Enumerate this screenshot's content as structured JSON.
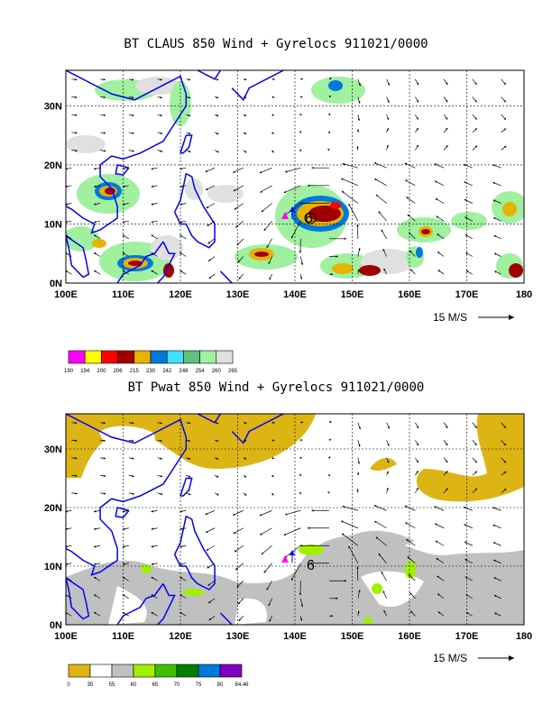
{
  "top_panel": {
    "title": "BT CLAUS 850 Wind + Gyrelocs 911021/0000",
    "storm_label": "6",
    "ref_vector_label": "15 M/S",
    "legend": {
      "labels": [
        "190",
        "194",
        "200",
        "206",
        "215",
        "230",
        "242",
        "248",
        "254",
        "260",
        "265"
      ],
      "colors": [
        "#ff00ff",
        "#ffff00",
        "#ff0000",
        "#a00000",
        "#e6b400",
        "#0078dc",
        "#40e0ff",
        "#60c080",
        "#a0f0a0",
        "#e0e0e0"
      ]
    }
  },
  "bottom_panel": {
    "title": "BT Pwat 850 Wind + Gyrelocs 911021/0000",
    "storm_label": "6",
    "ref_vector_label": "15 M/S",
    "legend": {
      "labels": [
        "0",
        "35",
        "55",
        "60",
        "65",
        "70",
        "75",
        "80",
        "84.46"
      ],
      "colors": [
        "#dcb414",
        "#ffffff",
        "#c0c0c0",
        "#a0f000",
        "#40c000",
        "#008000",
        "#0078dc",
        "#8000c0"
      ]
    }
  },
  "x_ticks": [
    "100E",
    "110E",
    "120E",
    "130E",
    "140E",
    "150E",
    "160E",
    "170E",
    "180"
  ],
  "y_ticks": [
    "0N",
    "10N",
    "20N",
    "30N"
  ],
  "map_extent": {
    "lon": [
      100,
      180
    ],
    "lat": [
      0,
      36
    ]
  },
  "colors": {
    "coastline": "#0000ff",
    "storm_marker": "#ff00ff",
    "track": "#0000ff",
    "grid": "#000000"
  }
}
